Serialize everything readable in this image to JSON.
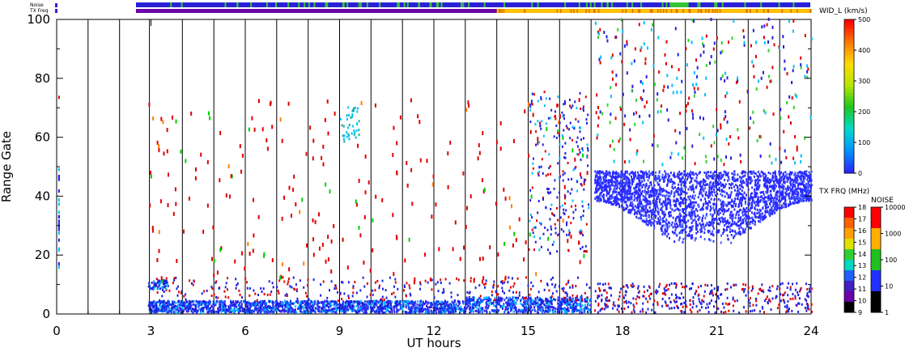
{
  "chart_data": {
    "type": "scatter",
    "xlabel": "UT hours",
    "ylabel": "Range Gate",
    "xlim": [
      0,
      24
    ],
    "ylim": [
      0,
      100
    ],
    "x_ticks": [
      "0",
      "3",
      "6",
      "9",
      "12",
      "15",
      "18",
      "21",
      "24"
    ],
    "y_ticks": [
      "0",
      "20",
      "40",
      "60",
      "80",
      "100"
    ],
    "status_rows": [
      "Noise",
      "TX Freq"
    ],
    "colorbars": [
      {
        "title": "WID_L (km/s)",
        "ticks": [
          "500",
          "400",
          "300",
          "200",
          "100",
          "0"
        ]
      },
      {
        "title": "TX FRQ (MHz)",
        "ticks": [
          "18",
          "17",
          "16",
          "15",
          "14",
          "13",
          "12",
          "11",
          "10",
          "9"
        ]
      },
      {
        "title": "NOISE",
        "ticks": [
          "10000",
          "1000",
          "100",
          "10",
          "1"
        ]
      }
    ],
    "hour_boundaries": [
      1,
      2,
      2.95,
      4,
      5,
      6,
      7,
      8,
      9,
      10,
      11,
      12,
      13,
      14,
      15,
      16,
      17,
      18,
      19,
      20,
      21,
      22,
      23
    ],
    "gap_hours": [
      [
        0.15,
        2.9
      ]
    ],
    "dense_bands": [
      {
        "x": [
          2.9,
          17.0
        ],
        "y": [
          0,
          4
        ],
        "dominant": "low-width (blue)"
      },
      {
        "x": [
          17.1,
          24
        ],
        "y": [
          22,
          50
        ],
        "dominant": "low-width (blue)"
      },
      {
        "x": [
          2.9,
          3.5
        ],
        "y": [
          8,
          11
        ],
        "dominant": "low-width (blue)"
      }
    ],
    "colors": {
      "noise_bar": "#2a20d8",
      "noise_bar_alt": "#35c435",
      "txfreq_bar_low": "#6a00a8",
      "txfreq_bar_high": "#ffc000",
      "data_low": "#2020e0",
      "data_mid": "#00c0ff",
      "data_high": "#e00000"
    }
  }
}
